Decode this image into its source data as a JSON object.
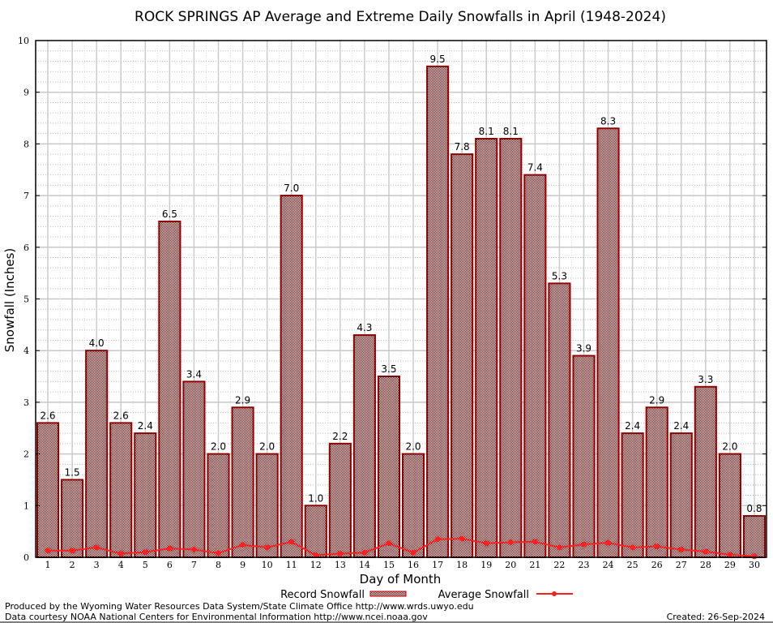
{
  "chart_data": {
    "type": "bar",
    "title": "ROCK SPRINGS AP Average and Extreme Daily Snowfalls in April (1948-2024)",
    "xlabel": "Day of Month",
    "ylabel": "Snowfall (Inches)",
    "ylim": [
      0,
      10
    ],
    "yticks": [
      "0",
      "1",
      "2",
      "3",
      "4",
      "5",
      "6",
      "7",
      "8",
      "9",
      "10"
    ],
    "categories": [
      "1",
      "2",
      "3",
      "4",
      "5",
      "6",
      "7",
      "8",
      "9",
      "10",
      "11",
      "12",
      "13",
      "14",
      "15",
      "16",
      "17",
      "18",
      "19",
      "20",
      "21",
      "22",
      "23",
      "24",
      "25",
      "26",
      "27",
      "28",
      "29",
      "30"
    ],
    "series": [
      {
        "name": "Record Snowfall",
        "type": "bar",
        "color": "#b00000",
        "values": [
          2.6,
          1.5,
          4.0,
          2.6,
          2.4,
          6.5,
          3.4,
          2.0,
          2.9,
          2.0,
          7.0,
          1.0,
          2.2,
          4.3,
          3.5,
          2.0,
          9.5,
          7.8,
          8.1,
          8.1,
          7.4,
          5.3,
          3.9,
          8.3,
          2.4,
          2.9,
          2.4,
          3.3,
          2.0,
          0.8
        ],
        "labels": [
          "2.6",
          "1.5",
          "4.0",
          "2.6",
          "2.4",
          "6.5",
          "3.4",
          "2.0",
          "2.9",
          "2.0",
          "7.0",
          "1.0",
          "2.2",
          "4.3",
          "3.5",
          "2.0",
          "9.5",
          "7.8",
          "8.1",
          "8.1",
          "7.4",
          "5.3",
          "3.9",
          "8.3",
          "2.4",
          "2.9",
          "2.4",
          "3.3",
          "2.0",
          "0.8"
        ]
      },
      {
        "name": "Average Snowfall",
        "type": "line",
        "color": "#ff2020",
        "values": [
          0.13,
          0.13,
          0.19,
          0.07,
          0.1,
          0.17,
          0.15,
          0.08,
          0.24,
          0.19,
          0.3,
          0.04,
          0.07,
          0.09,
          0.27,
          0.09,
          0.35,
          0.36,
          0.27,
          0.29,
          0.3,
          0.19,
          0.25,
          0.28,
          0.19,
          0.21,
          0.15,
          0.11,
          0.05,
          0.02
        ]
      }
    ],
    "grid": true,
    "legend": "bottom-center"
  },
  "footer": {
    "line1": "Produced by the Wyoming Water Resources Data System/State Climate Office http://www.wrds.uwyo.edu",
    "line2": "Data courtesy NOAA National Centers for Environmental Information http://www.ncei.noaa.gov",
    "created": "Created:  26-Sep-2024"
  }
}
